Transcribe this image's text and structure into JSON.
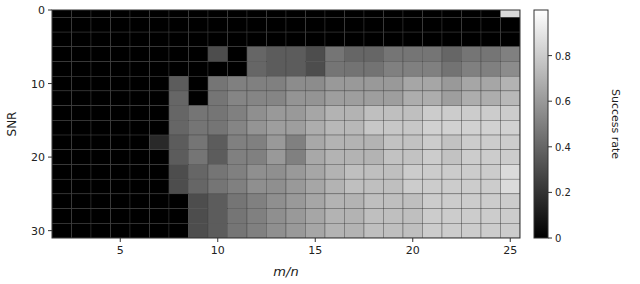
{
  "chart_data": {
    "type": "heatmap",
    "xlabel": "m/n",
    "ylabel": "SNR",
    "colorbar_label": "Success rate",
    "x": [
      2,
      3,
      4,
      5,
      6,
      7,
      8,
      9,
      10,
      11,
      12,
      13,
      14,
      15,
      16,
      17,
      18,
      19,
      20,
      21,
      22,
      23,
      24,
      25
    ],
    "y": [
      0,
      2,
      4,
      6,
      8,
      10,
      12,
      14,
      16,
      18,
      20,
      22,
      24,
      26,
      28,
      30
    ],
    "xlim": [
      1.5,
      25.5
    ],
    "ylim": [
      31,
      0
    ],
    "xticks": [
      5,
      10,
      15,
      20,
      25
    ],
    "yticks": [
      0,
      10,
      20,
      30
    ],
    "grid": true,
    "color_range": [
      0.0,
      1.0
    ],
    "color_ticks": [
      0,
      0.2,
      0.4,
      0.6,
      0.8
    ],
    "values": [
      [
        0.0,
        0.0,
        0.0,
        0.0,
        0.0,
        0.0,
        0.0,
        0.0,
        0.0,
        0.0,
        0.0,
        0.0,
        0.0,
        0.0,
        0.0,
        0.0,
        0.0,
        0.0,
        0.0,
        0.0,
        0.0,
        0.0,
        0.0,
        0.85
      ],
      [
        0.0,
        0.0,
        0.0,
        0.0,
        0.0,
        0.0,
        0.0,
        0.0,
        0.0,
        0.0,
        0.0,
        0.0,
        0.0,
        0.0,
        0.0,
        0.0,
        0.0,
        0.0,
        0.0,
        0.0,
        0.0,
        0.0,
        0.0,
        0.0
      ],
      [
        0.0,
        0.0,
        0.0,
        0.0,
        0.0,
        0.0,
        0.0,
        0.0,
        0.0,
        0.0,
        0.0,
        0.0,
        0.0,
        0.0,
        0.0,
        0.0,
        0.0,
        0.0,
        0.0,
        0.0,
        0.0,
        0.0,
        0.0,
        0.0
      ],
      [
        0.0,
        0.0,
        0.0,
        0.0,
        0.0,
        0.0,
        0.0,
        0.0,
        0.3,
        0.0,
        0.4,
        0.36,
        0.36,
        0.3,
        0.46,
        0.4,
        0.4,
        0.46,
        0.46,
        0.46,
        0.4,
        0.46,
        0.46,
        0.5
      ],
      [
        0.0,
        0.0,
        0.0,
        0.0,
        0.0,
        0.0,
        0.0,
        0.0,
        0.0,
        0.0,
        0.4,
        0.36,
        0.36,
        0.3,
        0.46,
        0.45,
        0.45,
        0.5,
        0.5,
        0.5,
        0.45,
        0.5,
        0.5,
        0.55
      ],
      [
        0.0,
        0.0,
        0.0,
        0.0,
        0.0,
        0.0,
        0.36,
        0.0,
        0.46,
        0.5,
        0.5,
        0.5,
        0.55,
        0.55,
        0.6,
        0.6,
        0.6,
        0.6,
        0.65,
        0.65,
        0.6,
        0.65,
        0.65,
        0.7
      ],
      [
        0.0,
        0.0,
        0.0,
        0.0,
        0.0,
        0.0,
        0.4,
        0.0,
        0.46,
        0.52,
        0.52,
        0.52,
        0.58,
        0.58,
        0.62,
        0.62,
        0.62,
        0.62,
        0.68,
        0.68,
        0.62,
        0.68,
        0.68,
        0.72
      ],
      [
        0.0,
        0.0,
        0.0,
        0.0,
        0.0,
        0.0,
        0.4,
        0.46,
        0.46,
        0.5,
        0.56,
        0.6,
        0.6,
        0.65,
        0.7,
        0.7,
        0.75,
        0.75,
        0.75,
        0.8,
        0.8,
        0.8,
        0.8,
        0.8
      ],
      [
        0.0,
        0.0,
        0.0,
        0.0,
        0.0,
        0.0,
        0.4,
        0.46,
        0.46,
        0.52,
        0.58,
        0.62,
        0.62,
        0.68,
        0.72,
        0.72,
        0.78,
        0.78,
        0.78,
        0.82,
        0.82,
        0.82,
        0.82,
        0.82
      ],
      [
        0.0,
        0.0,
        0.0,
        0.0,
        0.0,
        0.16,
        0.36,
        0.46,
        0.36,
        0.5,
        0.5,
        0.6,
        0.5,
        0.66,
        0.7,
        0.7,
        0.7,
        0.76,
        0.76,
        0.8,
        0.76,
        0.8,
        0.8,
        0.8
      ],
      [
        0.0,
        0.0,
        0.0,
        0.0,
        0.0,
        0.0,
        0.36,
        0.46,
        0.36,
        0.5,
        0.5,
        0.6,
        0.5,
        0.66,
        0.7,
        0.7,
        0.7,
        0.76,
        0.76,
        0.8,
        0.76,
        0.8,
        0.8,
        0.8
      ],
      [
        0.0,
        0.0,
        0.0,
        0.0,
        0.0,
        0.0,
        0.3,
        0.4,
        0.46,
        0.5,
        0.56,
        0.56,
        0.6,
        0.65,
        0.7,
        0.75,
        0.75,
        0.75,
        0.8,
        0.8,
        0.8,
        0.8,
        0.8,
        0.86
      ],
      [
        0.0,
        0.0,
        0.0,
        0.0,
        0.0,
        0.0,
        0.3,
        0.4,
        0.46,
        0.5,
        0.56,
        0.56,
        0.6,
        0.65,
        0.7,
        0.75,
        0.75,
        0.75,
        0.8,
        0.8,
        0.8,
        0.8,
        0.8,
        0.86
      ],
      [
        0.0,
        0.0,
        0.0,
        0.0,
        0.0,
        0.0,
        0.0,
        0.3,
        0.36,
        0.46,
        0.5,
        0.56,
        0.6,
        0.65,
        0.7,
        0.7,
        0.75,
        0.75,
        0.75,
        0.8,
        0.8,
        0.8,
        0.8,
        0.8
      ],
      [
        0.0,
        0.0,
        0.0,
        0.0,
        0.0,
        0.0,
        0.0,
        0.3,
        0.36,
        0.46,
        0.5,
        0.56,
        0.6,
        0.65,
        0.7,
        0.7,
        0.75,
        0.75,
        0.75,
        0.8,
        0.8,
        0.8,
        0.8,
        0.8
      ],
      [
        0.0,
        0.0,
        0.0,
        0.0,
        0.0,
        0.0,
        0.0,
        0.3,
        0.36,
        0.46,
        0.5,
        0.56,
        0.6,
        0.65,
        0.7,
        0.7,
        0.75,
        0.75,
        0.75,
        0.8,
        0.8,
        0.8,
        0.8,
        0.8
      ]
    ]
  }
}
